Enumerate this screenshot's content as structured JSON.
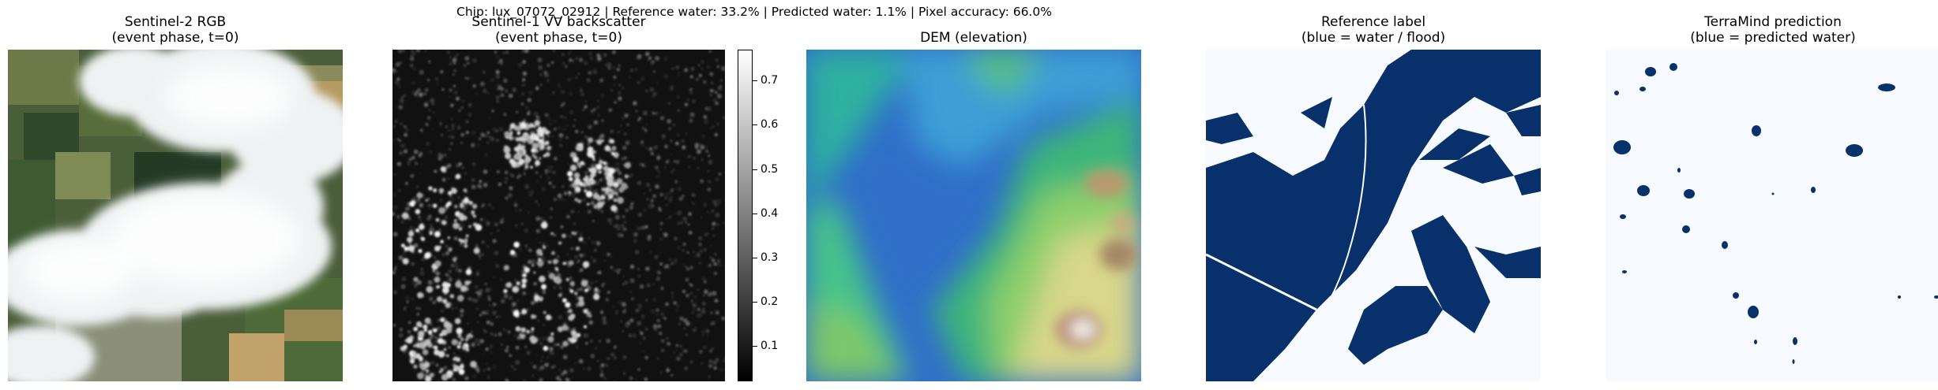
{
  "header": {
    "summary": "Chip: lux_07072_02912   |   Reference water: 33.2%   |   Predicted water: 1.1%   |   Pixel accuracy: 66.0%"
  },
  "panels": [
    {
      "title": "Sentinel-2  RGB",
      "subtitle": "(event phase, t=0)"
    },
    {
      "title": "Sentinel-1  VV backscatter",
      "subtitle": "(event phase, t=0)"
    },
    {
      "title": "DEM  (elevation)",
      "subtitle": ""
    },
    {
      "title": "Reference label",
      "subtitle": "(blue = water / flood)"
    },
    {
      "title": "TerraMind prediction",
      "subtitle": "(blue = predicted water)"
    }
  ],
  "colorbar": {
    "ticks": [
      "0.7",
      "0.6",
      "0.5",
      "0.4",
      "0.3",
      "0.2",
      "0.1"
    ],
    "values": [
      0.7,
      0.6,
      0.5,
      0.4,
      0.3,
      0.2,
      0.1
    ],
    "range": [
      0.02,
      0.77
    ]
  },
  "colors": {
    "water": "#08306b",
    "land": "#f7fbff"
  }
}
